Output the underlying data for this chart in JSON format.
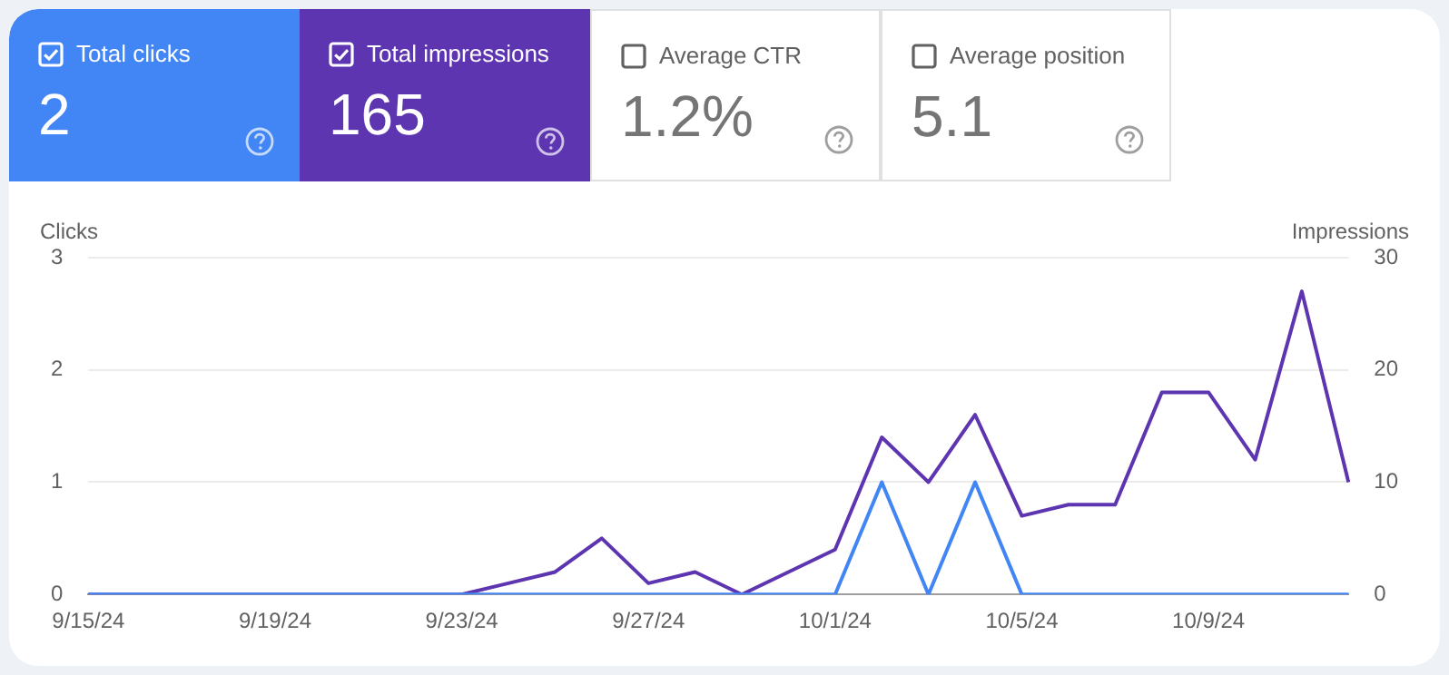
{
  "chart_data": [
    {
      "type": "other",
      "categories": [
        "Total clicks",
        "Total impressions",
        "Average CTR",
        "Average position"
      ],
      "value_labels": [
        "2",
        "165",
        "1.2%",
        "5.1"
      ],
      "colors": [
        "#4285f4",
        "#5e35b1",
        null,
        null
      ]
    },
    {
      "type": "line",
      "categories": [
        "9/15/24",
        null,
        null,
        null,
        "9/19/24",
        null,
        null,
        null,
        "9/23/24",
        null,
        null,
        null,
        "9/27/24",
        null,
        null,
        null,
        "10/1/24",
        null,
        null,
        null,
        "10/5/24",
        null,
        null,
        null,
        "10/9/24",
        null,
        null,
        null
      ],
      "ylabel": "Clicks",
      "y2label": "Impressions",
      "ylim": [
        0,
        3
      ],
      "yticks": [
        0,
        1,
        2,
        3
      ],
      "y2lim": [
        0,
        30
      ],
      "y2ticks": [
        0,
        10,
        20,
        30
      ],
      "grid": "y",
      "marker": "none",
      "line_style": "solid",
      "series": [
        {
          "color": "#4285f4",
          "axis": "y",
          "values": [
            0,
            0,
            0,
            0,
            0,
            0,
            0,
            0,
            0,
            0,
            0,
            0,
            0,
            0,
            0,
            0,
            0,
            1,
            0,
            1,
            0,
            0,
            0,
            0,
            0,
            0,
            0,
            0
          ]
        },
        {
          "color": "#5e35b1",
          "axis": "y2",
          "values": [
            0,
            0,
            0,
            0,
            0,
            0,
            0,
            0,
            0,
            1,
            2,
            5,
            1,
            2,
            0,
            2,
            4,
            14,
            10,
            16,
            7,
            8,
            8,
            18,
            18,
            12,
            27,
            10
          ]
        }
      ]
    }
  ]
}
